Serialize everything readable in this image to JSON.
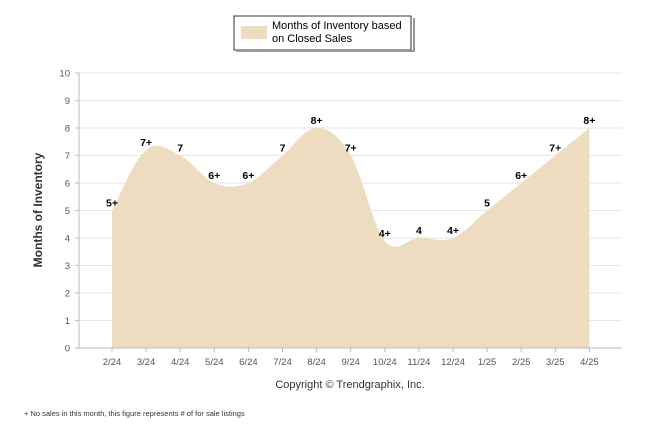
{
  "chart_data": {
    "type": "area",
    "categories": [
      "2/24",
      "3/24",
      "4/24",
      "5/24",
      "6/24",
      "7/24",
      "8/24",
      "9/24",
      "10/24",
      "11/24",
      "12/24",
      "1/25",
      "2/25",
      "3/25",
      "4/25"
    ],
    "series": [
      {
        "name": "Months of Inventory based on Closed Sales",
        "values": [
          5.0,
          7.2,
          7.0,
          6.0,
          6.0,
          7.0,
          8.0,
          7.0,
          3.9,
          4.0,
          4.0,
          5.0,
          6.0,
          7.0,
          8.0
        ],
        "labels": [
          "5+",
          "7+",
          "7",
          "6+",
          "6+",
          "7",
          "8+",
          "7+",
          "4+",
          "4",
          "4+",
          "5",
          "6+",
          "7+",
          "8+"
        ]
      }
    ],
    "xlabel": "",
    "ylabel": "Months of Inventory",
    "ylim": [
      0,
      10
    ],
    "yticks": [
      "0",
      "1",
      "2",
      "3",
      "4",
      "5",
      "6",
      "7",
      "8",
      "9",
      "10"
    ],
    "grid": true,
    "legend": "top-center",
    "colors": {
      "area": "#eddcc0",
      "grid": "#e6e6e6",
      "axis": "#bbbbbb"
    }
  },
  "legend": {
    "line1": "Months of Inventory based",
    "line2": "on Closed Sales"
  },
  "copyright": "Copyright © Trendgraphix, Inc.",
  "footnote": "+  No sales in this month, this figure represents # of for sale listings"
}
